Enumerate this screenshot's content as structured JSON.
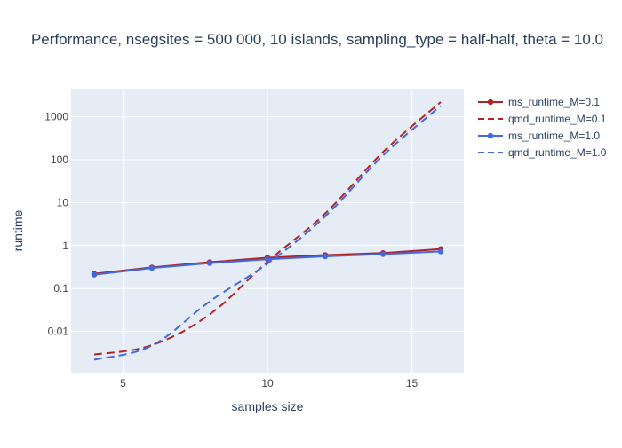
{
  "chart_data": {
    "type": "line",
    "title": "Performance, nsegsites = 500 000, 10 islands, sampling_type = half-half, theta = 10.0",
    "xlabel": "samples size",
    "ylabel": "runtime",
    "xlim": [
      3.2,
      16.8
    ],
    "ylim": [
      0.0011,
      4500
    ],
    "y_scale": "log",
    "x_ticks": [
      5,
      10,
      15
    ],
    "y_ticks": [
      0.01,
      0.1,
      1,
      10,
      100,
      1000
    ],
    "y_tick_labels": [
      "0.01",
      "0.1",
      "1",
      "10",
      "100",
      "1000"
    ],
    "grid": true,
    "legend_position": "right",
    "series": [
      {
        "name": "ms_runtime_M=0.1",
        "color": "#b22222",
        "style": "solid",
        "markers": true,
        "x": [
          4,
          6,
          8,
          10,
          12,
          14,
          16
        ],
        "y": [
          0.22,
          0.31,
          0.41,
          0.52,
          0.6,
          0.67,
          0.83
        ]
      },
      {
        "name": "qmd_runtime_M=0.1",
        "color": "#b22222",
        "style": "dash",
        "markers": false,
        "x": [
          4,
          6,
          8,
          10,
          12,
          14,
          16
        ],
        "y": [
          0.0029,
          0.0048,
          0.025,
          0.42,
          5.6,
          150,
          2200
        ]
      },
      {
        "name": "ms_runtime_M=1.0",
        "color": "#4169e1",
        "style": "solid",
        "markers": true,
        "x": [
          4,
          6,
          8,
          10,
          12,
          14,
          16
        ],
        "y": [
          0.21,
          0.3,
          0.39,
          0.48,
          0.56,
          0.63,
          0.73
        ]
      },
      {
        "name": "qmd_runtime_M=1.0",
        "color": "#4169e1",
        "style": "dash",
        "markers": false,
        "x": [
          4,
          6,
          8,
          10,
          12,
          14,
          16
        ],
        "y": [
          0.0022,
          0.0047,
          0.05,
          0.38,
          4.8,
          125,
          1800
        ]
      }
    ]
  },
  "theme": {
    "plot_bg": "#e5ecf6",
    "grid_color": "#ffffff",
    "text_color": "#2a3f5f",
    "tick_color": "#444444"
  }
}
